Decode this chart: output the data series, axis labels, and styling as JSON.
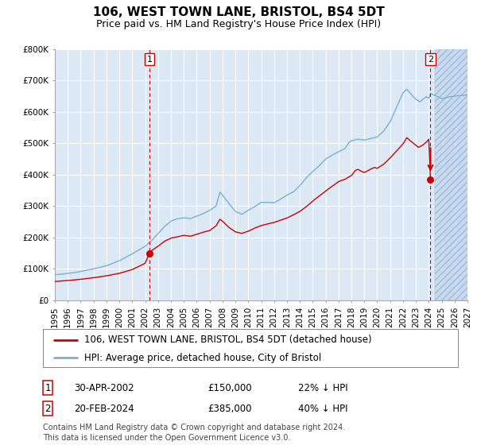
{
  "title": "106, WEST TOWN LANE, BRISTOL, BS4 5DT",
  "subtitle": "Price paid vs. HM Land Registry's House Price Index (HPI)",
  "ylim": [
    0,
    800000
  ],
  "yticks": [
    0,
    100000,
    200000,
    300000,
    400000,
    500000,
    600000,
    700000,
    800000
  ],
  "ytick_labels": [
    "£0",
    "£100K",
    "£200K",
    "£300K",
    "£400K",
    "£500K",
    "£600K",
    "£700K",
    "£800K"
  ],
  "x_start_year": 1995,
  "x_end_year": 2027,
  "xtick_years": [
    1995,
    1996,
    1997,
    1998,
    1999,
    2000,
    2001,
    2002,
    2003,
    2004,
    2005,
    2006,
    2007,
    2008,
    2009,
    2010,
    2011,
    2012,
    2013,
    2014,
    2015,
    2016,
    2017,
    2018,
    2019,
    2020,
    2021,
    2022,
    2023,
    2024,
    2025,
    2026,
    2027
  ],
  "bg_color": "#dce9f5",
  "hatch_start_year": 2024.5,
  "red_line_color": "#cc0000",
  "blue_line_color": "#7aafd4",
  "marker_color": "#cc0000",
  "vline_color": "#cc0000",
  "purchase1_year": 2002.33,
  "purchase1_value": 150000,
  "purchase2_year": 2024.13,
  "purchase2_value": 385000,
  "purchase2_hpi_value": 510000,
  "legend_label1": "106, WEST TOWN LANE, BRISTOL, BS4 5DT (detached house)",
  "legend_label2": "HPI: Average price, detached house, City of Bristol",
  "table_row1": [
    "1",
    "30-APR-2002",
    "£150,000",
    "22% ↓ HPI"
  ],
  "table_row2": [
    "2",
    "20-FEB-2024",
    "£385,000",
    "40% ↓ HPI"
  ],
  "footnote": "Contains HM Land Registry data © Crown copyright and database right 2024.\nThis data is licensed under the Open Government Licence v3.0.",
  "title_fontsize": 11,
  "subtitle_fontsize": 9,
  "tick_fontsize": 7.5,
  "legend_fontsize": 8.5,
  "table_fontsize": 8.5,
  "footnote_fontsize": 7
}
